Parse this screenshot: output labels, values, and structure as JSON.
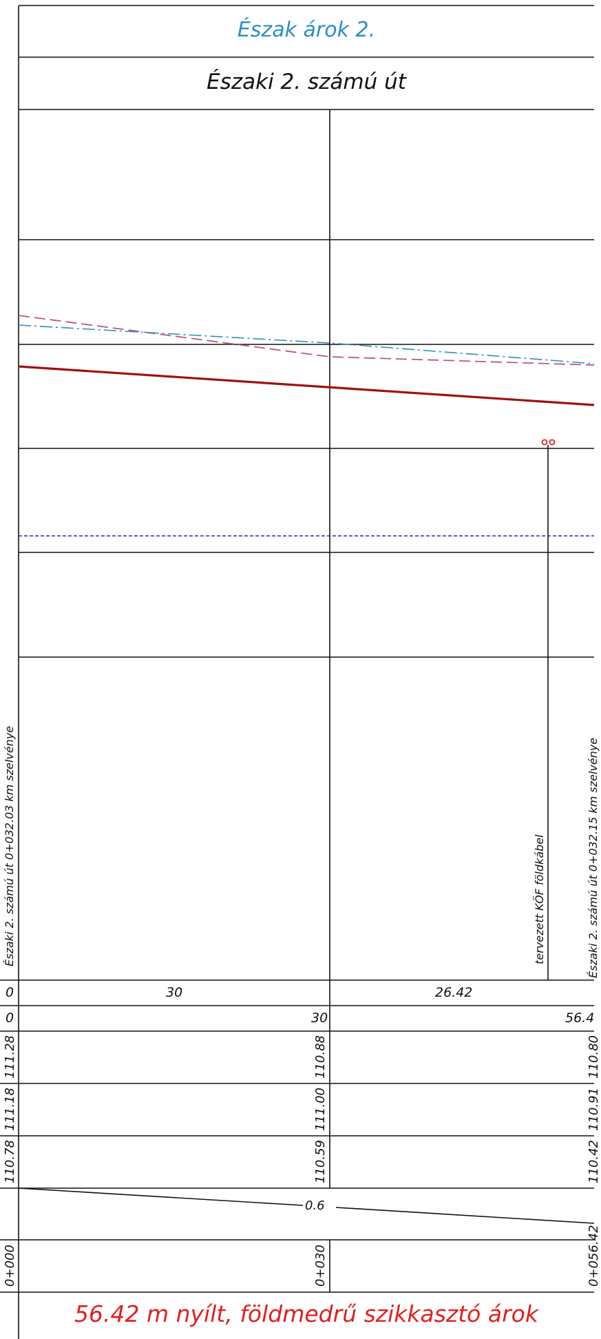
{
  "title": "Észak árok 2.",
  "road_name": "Északi 2. számú út",
  "station_note": "Északi 2. számú út  0+032.03 km szelvénye",
  "cable_note": "tervezett KÖF földkábel",
  "cut_off_note": "Északi 2. számú út 0+032.15 km szelvénye",
  "bottom_caption": "56.42 m nyílt, földmedrű szikkasztó árok",
  "rows": {
    "segment_lengths": {
      "start": "0",
      "values": [
        "30",
        "26.42"
      ]
    },
    "cumulative_distance": {
      "start": "0",
      "values": [
        "30",
        "56.4"
      ]
    },
    "elevation_row_1": [
      "111.28",
      "110.88",
      "110.80"
    ],
    "elevation_row_2": [
      "111.18",
      "111.00",
      "110.91"
    ],
    "elevation_row_3": [
      "110.78",
      "110.59",
      "110.42"
    ],
    "slope": "0.6",
    "chainage": [
      "0+000",
      "0+030",
      "0+056.42"
    ]
  },
  "colors": {
    "title": "#2a8fc4",
    "caption": "#e11f1f",
    "design_line": "#a01010",
    "terrain_dashed": "#c0508a",
    "reference_dashdot": "#2a8fc4",
    "water_level": "#2222dd",
    "utility_marker": "#e11f1f",
    "grid": "#111111"
  }
}
